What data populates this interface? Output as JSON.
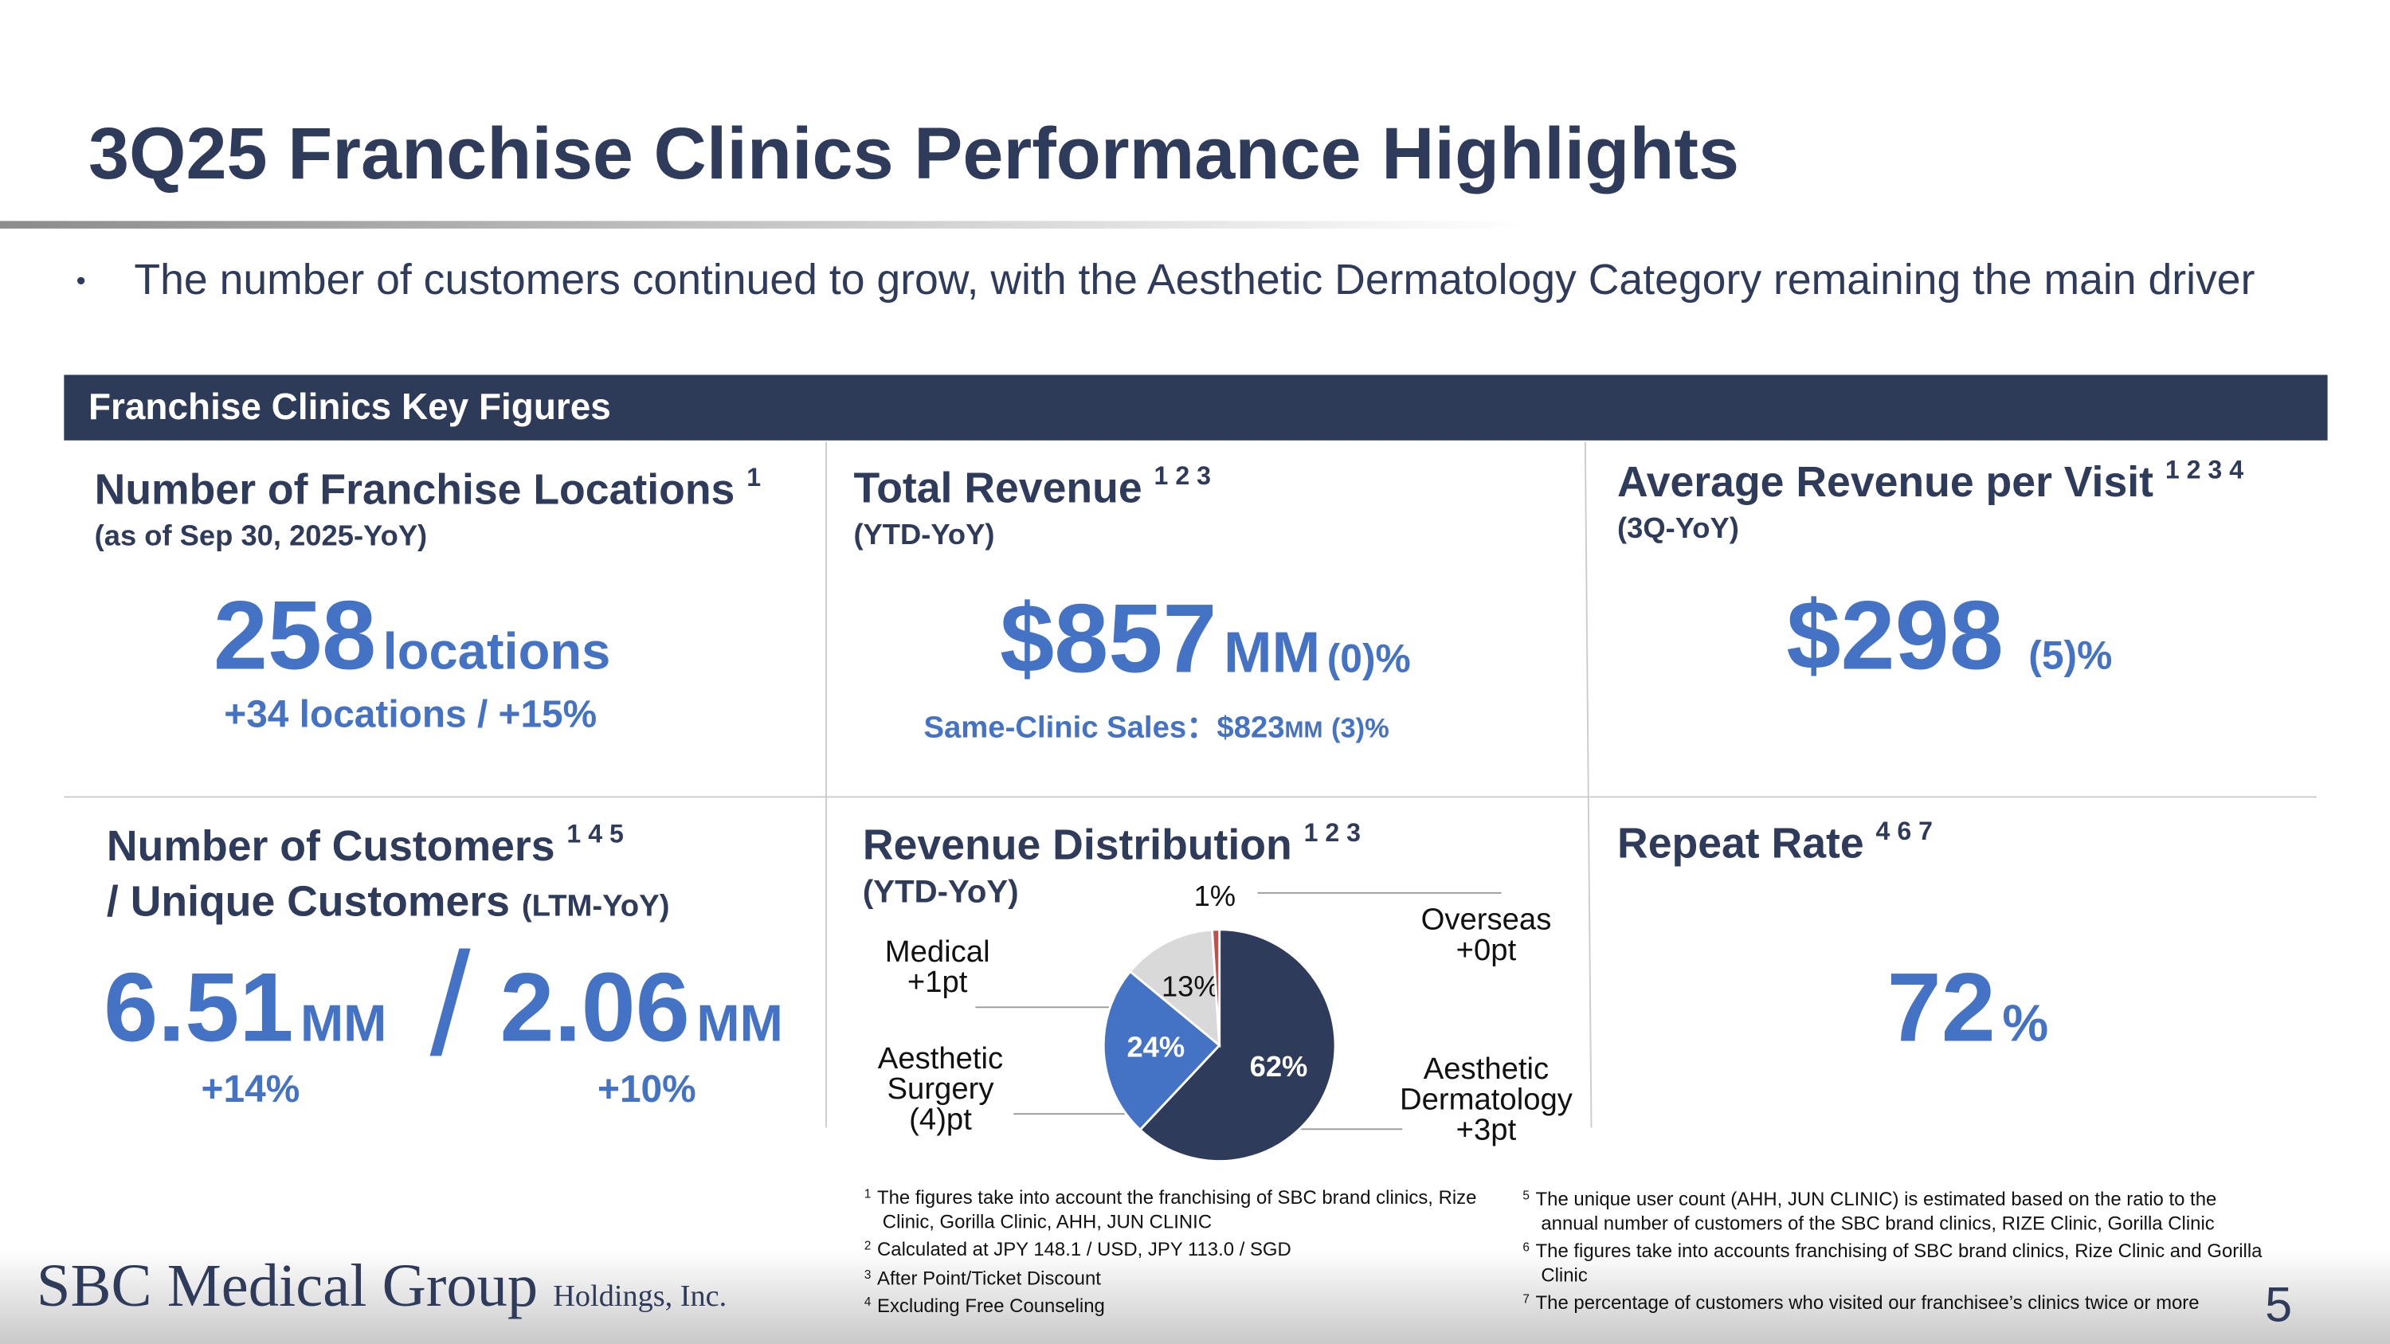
{
  "header": {
    "title": "3Q25 Franchise Clinics Performance Highlights",
    "bullet": "The number of customers continued to grow, with the Aesthetic Dermatology Category remaining the main driver"
  },
  "section_title": "Franchise Clinics Key Figures",
  "panels": {
    "locations": {
      "title": "Number of Franchise Locations",
      "sup": "1",
      "subtitle": "(as of Sep 30, 2025-YoY)",
      "value": "258",
      "unit": "locations",
      "change": "+34 locations / +15%"
    },
    "revenue": {
      "title": "Total Revenue",
      "sup": "1 2 3",
      "subtitle": "(YTD-YoY)",
      "value": "$857",
      "unit": "MM",
      "change": "(0)%",
      "same_clinic_label": "Same-Clinic Sales：",
      "same_clinic_value": "$823",
      "same_clinic_unit": "MM",
      "same_clinic_change": "(3)%"
    },
    "avg_revenue": {
      "title": "Average Revenue per Visit",
      "sup": "1 2 3 4",
      "subtitle": "(3Q-YoY)",
      "value": "$298",
      "change": "(5)%"
    },
    "customers": {
      "title": "Number of Customers",
      "sup": "1 4 5",
      "title2": "/ Unique Customers",
      "subtitle": "(LTM-YoY)",
      "value": "6.51",
      "unit": "MM",
      "change": "+14%",
      "separator": "/",
      "unique_value": "2.06",
      "unique_unit": "MM",
      "unique_change": "+10%"
    },
    "repeat": {
      "title": "Repeat Rate",
      "sup": "4 6 7",
      "value": "72",
      "unit": "%"
    }
  },
  "chart_data": {
    "type": "pie",
    "title": "Revenue Distribution",
    "title_sup": "1 2 3",
    "subtitle": "(YTD-YoY)",
    "categories": [
      "Aesthetic Dermatology",
      "Aesthetic Surgery",
      "Medical",
      "Overseas"
    ],
    "values": [
      62,
      24,
      13,
      1
    ],
    "value_labels": [
      "62%",
      "24%",
      "13%",
      "1%"
    ],
    "changes": [
      "+3pt",
      "(4)pt",
      "+1pt",
      "+0pt"
    ],
    "colors": [
      "#2f3b5a",
      "#4472c4",
      "#d9d9d9",
      "#c0504d"
    ]
  },
  "footnotes_left": [
    {
      "mark": "1",
      "text": "The figures take into account the franchising of SBC brand clinics, Rize Clinic, Gorilla Clinic, AHH, JUN CLINIC"
    },
    {
      "mark": "2",
      "text": "Calculated at JPY 148.1 / USD, JPY 113.0 / SGD"
    },
    {
      "mark": "3",
      "text": "After Point/Ticket Discount"
    },
    {
      "mark": "4",
      "text": "Excluding Free Counseling"
    }
  ],
  "footnotes_right": [
    {
      "mark": "5",
      "text": "The unique user count (AHH, JUN CLINIC) is estimated based on the ratio to the annual number of customers of the SBC brand clinics, RIZE Clinic, Gorilla Clinic"
    },
    {
      "mark": "6",
      "text": "The figures take into accounts franchising of SBC brand clinics, Rize Clinic and Gorilla Clinic"
    },
    {
      "mark": "7",
      "text": "The percentage of customers who visited our franchisee’s clinics twice or more"
    }
  ],
  "logo": {
    "name": "SBC Medical Group",
    "suffix": "Holdings, Inc."
  },
  "page_number": "5"
}
